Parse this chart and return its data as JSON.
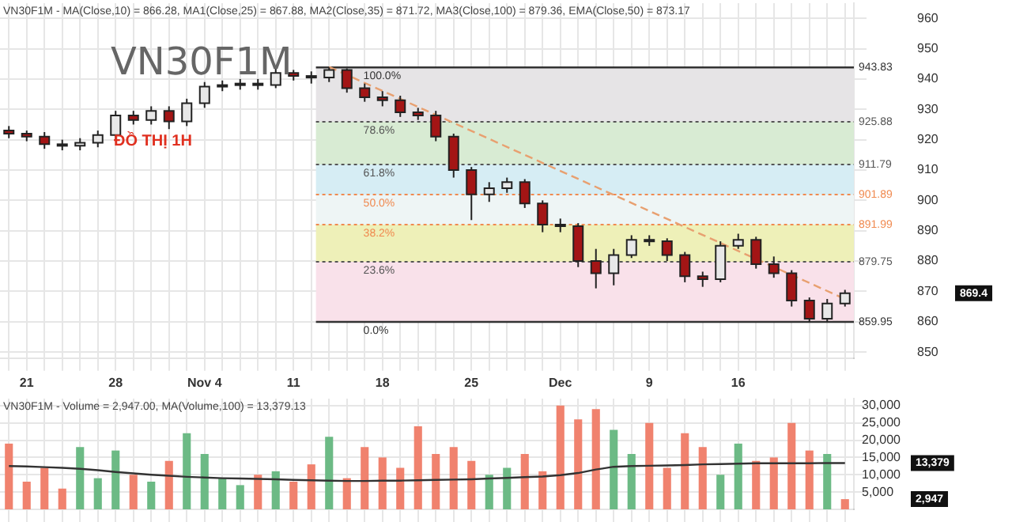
{
  "chart_data": [
    {
      "type": "candlestick",
      "title": "VN30F1M",
      "subtitle": "ĐỒ THỊ 1H",
      "categories": [
        null,
        "21",
        null,
        null,
        null,
        null,
        "28",
        null,
        null,
        null,
        null,
        "Nov 4",
        null,
        null,
        null,
        null,
        "11",
        null,
        null,
        null,
        null,
        "18",
        null,
        null,
        null,
        null,
        "25",
        null,
        null,
        null,
        null,
        "Dec",
        null,
        null,
        null,
        null,
        "9",
        null,
        null,
        null,
        null,
        "16",
        null,
        null,
        null,
        null,
        null,
        null
      ],
      "ohlc": [
        [
          923,
          924.5,
          920.5,
          922
        ],
        [
          922,
          923,
          919.5,
          921
        ],
        [
          921,
          922.5,
          917,
          918.5
        ],
        [
          918.5,
          920,
          916.5,
          918
        ],
        [
          918,
          920.5,
          916.5,
          919
        ],
        [
          919,
          923,
          917.5,
          921.5
        ],
        [
          921.5,
          929.5,
          920,
          928
        ],
        [
          928,
          929.5,
          925,
          926.5
        ],
        [
          926.5,
          931,
          925,
          929.5
        ],
        [
          929.5,
          931,
          923.5,
          926
        ],
        [
          926,
          933.5,
          924.5,
          932
        ],
        [
          932,
          939,
          930.5,
          937.5
        ],
        [
          937.5,
          939.5,
          936,
          938
        ],
        [
          938,
          940,
          936.5,
          938.5
        ],
        [
          938.5,
          940,
          936.5,
          938
        ],
        [
          938,
          943.5,
          937,
          942
        ],
        [
          942,
          943,
          939.5,
          941
        ],
        [
          941,
          942.5,
          938.5,
          940.5
        ],
        [
          940.5,
          943.83,
          939,
          943
        ],
        [
          943,
          943.5,
          935.5,
          937
        ],
        [
          937,
          938.5,
          932.5,
          934
        ],
        [
          934,
          936,
          931,
          933
        ],
        [
          933,
          934.5,
          927.5,
          929
        ],
        [
          929,
          930.5,
          926.5,
          928
        ],
        [
          928,
          929.5,
          919.5,
          921
        ],
        [
          921,
          922,
          907.5,
          910
        ],
        [
          910,
          911,
          893.5,
          902
        ],
        [
          902,
          906,
          899.5,
          904
        ],
        [
          904,
          907.5,
          902.5,
          906
        ],
        [
          906,
          907,
          897.5,
          899
        ],
        [
          899,
          900,
          889.5,
          892
        ],
        [
          892,
          894,
          889.5,
          891.5
        ],
        [
          891.5,
          892.5,
          878,
          880
        ],
        [
          880,
          884,
          871,
          876
        ],
        [
          876,
          884,
          872,
          882
        ],
        [
          882,
          888.5,
          881,
          887
        ],
        [
          887,
          888.5,
          885,
          886.5
        ],
        [
          886.5,
          887.5,
          880,
          882
        ],
        [
          882,
          883,
          873,
          875
        ],
        [
          875,
          876.5,
          871.5,
          874
        ],
        [
          874,
          886.5,
          873,
          885
        ],
        [
          885,
          889,
          884,
          887
        ],
        [
          887,
          888,
          877.5,
          879
        ],
        [
          879,
          881.5,
          874.5,
          876
        ],
        [
          876,
          877,
          865,
          867
        ],
        [
          867,
          868,
          859.95,
          861
        ],
        [
          861,
          867.5,
          860,
          866
        ],
        [
          866,
          870.5,
          865,
          869.4
        ]
      ],
      "colors": [
        "#a31515",
        "#a31515",
        "#a31515",
        "#a31515",
        "#e8e8e8",
        "#e8e8e8",
        "#e8e8e8",
        "#a31515",
        "#e8e8e8",
        "#a31515",
        "#e8e8e8",
        "#e8e8e8",
        "#e8e8e8",
        "#e8e8e8",
        "#a31515",
        "#e8e8e8",
        "#a31515",
        "#a31515",
        "#e8e8e8",
        "#a31515",
        "#a31515",
        "#a31515",
        "#a31515",
        "#a31515",
        "#a31515",
        "#a31515",
        "#a31515",
        "#e8e8e8",
        "#e8e8e8",
        "#a31515",
        "#a31515",
        "#a31515",
        "#a31515",
        "#a31515",
        "#e8e8e8",
        "#e8e8e8",
        "#a31515",
        "#a31515",
        "#a31515",
        "#a31515",
        "#e8e8e8",
        "#e8e8e8",
        "#a31515",
        "#a31515",
        "#a31515",
        "#a31515",
        "#e8e8e8",
        "#e8e8e8"
      ],
      "series": [
        {
          "type": "line",
          "color": "#e8a070",
          "line_style": "dashed",
          "marker": "none",
          "values": [
            null,
            null,
            null,
            null,
            null,
            null,
            null,
            null,
            null,
            null,
            null,
            null,
            null,
            null,
            null,
            null,
            null,
            null,
            944,
            null,
            null,
            null,
            null,
            null,
            null,
            null,
            null,
            null,
            null,
            null,
            null,
            null,
            null,
            null,
            null,
            null,
            null,
            null,
            null,
            null,
            null,
            null,
            null,
            null,
            null,
            null,
            null,
            867.5
          ]
        }
      ],
      "ylim": [
        848,
        965
      ],
      "yticks": [
        850,
        860,
        870,
        880,
        890,
        900,
        910,
        920,
        930,
        940,
        950,
        960
      ],
      "grid": true,
      "legend": false,
      "bands": [
        {
          "axis": "y",
          "from": 925.88,
          "to": 943.83,
          "color": "#e6e4e6"
        },
        {
          "axis": "y",
          "from": 911.79,
          "to": 925.88,
          "color": "#d8ebd3"
        },
        {
          "axis": "y",
          "from": 901.89,
          "to": 911.79,
          "color": "#d6edf4"
        },
        {
          "axis": "y",
          "from": 891.99,
          "to": 901.89,
          "color": "#eef5f5"
        },
        {
          "axis": "y",
          "from": 879.75,
          "to": 891.99,
          "color": "#eef0b8"
        },
        {
          "axis": "y",
          "from": 859.95,
          "to": 879.75,
          "color": "#f9e1ea"
        }
      ],
      "ref_lines": [
        {
          "axis": "y",
          "value": 943.83,
          "label": "943.83",
          "color": "#333333",
          "line_style": "solid"
        },
        {
          "axis": "y",
          "value": 925.88,
          "label": "925.88",
          "color": "#555555",
          "line_style": "dotted"
        },
        {
          "axis": "y",
          "value": 911.79,
          "label": "911.79",
          "color": "#555555",
          "line_style": "dotted"
        },
        {
          "axis": "y",
          "value": 901.89,
          "label": "901.89",
          "color": "#f08a50",
          "line_style": "dotted"
        },
        {
          "axis": "y",
          "value": 891.99,
          "label": "891.99",
          "color": "#f08a50",
          "line_style": "dotted"
        },
        {
          "axis": "y",
          "value": 879.75,
          "label": "879.75",
          "color": "#555555",
          "line_style": "dotted"
        },
        {
          "axis": "y",
          "value": 859.95,
          "label": "859.95",
          "color": "#333333",
          "line_style": "solid"
        }
      ],
      "annotations": [
        "VN30F1M - MA(Close,10) = 866.28, MA1(Close,25) = 867.88, MA2(Close,35) = 871.72, MA3(Close,100) = 879.36, EMA(Close,50) = 873.17",
        {
          "text": "100.0%",
          "y": 943.83
        },
        {
          "text": "78.6%",
          "y": 925.88
        },
        {
          "text": "61.8%",
          "y": 911.79
        },
        {
          "text": "50.0%",
          "y": 901.89
        },
        {
          "text": "38.2%",
          "y": 891.99
        },
        {
          "text": "23.6%",
          "y": 879.75
        },
        {
          "text": "0.0%",
          "y": 859.95
        },
        "869.4"
      ]
    },
    {
      "type": "bar",
      "categories": [
        null,
        null,
        null,
        null,
        null,
        null,
        null,
        null,
        null,
        null,
        null,
        null,
        null,
        null,
        null,
        null,
        null,
        null,
        null,
        null,
        null,
        null,
        null,
        null,
        null,
        null,
        null,
        null,
        null,
        null,
        null,
        null,
        null,
        null,
        null,
        null,
        null,
        null,
        null,
        null,
        null,
        null,
        null,
        null,
        null,
        null,
        null,
        null
      ],
      "series": [
        {
          "values": [
            19000,
            8000,
            12000,
            6000,
            18000,
            9000,
            17000,
            10000,
            8000,
            14000,
            22000,
            16000,
            9000,
            7000,
            10000,
            11000,
            8000,
            13000,
            21000,
            9000,
            18000,
            15000,
            12000,
            24000,
            16000,
            18000,
            14000,
            10000,
            12000,
            16000,
            11000,
            30000,
            26000,
            29000,
            23000,
            16000,
            25000,
            12000,
            22000,
            18000,
            10000,
            19000,
            14000,
            15000,
            25000,
            17000,
            16000,
            2947
          ],
          "colors": [
            "#f0826e",
            "#f0826e",
            "#f0826e",
            "#f0826e",
            "#6cba85",
            "#6cba85",
            "#6cba85",
            "#f0826e",
            "#6cba85",
            "#f0826e",
            "#6cba85",
            "#6cba85",
            "#6cba85",
            "#6cba85",
            "#f0826e",
            "#6cba85",
            "#f0826e",
            "#f0826e",
            "#6cba85",
            "#f0826e",
            "#f0826e",
            "#f0826e",
            "#f0826e",
            "#f0826e",
            "#f0826e",
            "#f0826e",
            "#f0826e",
            "#6cba85",
            "#6cba85",
            "#f0826e",
            "#f0826e",
            "#f0826e",
            "#f0826e",
            "#f0826e",
            "#6cba85",
            "#6cba85",
            "#f0826e",
            "#f0826e",
            "#f0826e",
            "#f0826e",
            "#6cba85",
            "#6cba85",
            "#f0826e",
            "#f0826e",
            "#f0826e",
            "#f0826e",
            "#6cba85",
            "#f0826e"
          ]
        },
        {
          "type": "line",
          "color": "#333333",
          "values": [
            12500,
            12400,
            12200,
            12000,
            11700,
            11300,
            10800,
            10400,
            10000,
            9700,
            9400,
            9200,
            9000,
            8900,
            8800,
            8700,
            8500,
            8400,
            8300,
            8200,
            8200,
            8300,
            8300,
            8400,
            8500,
            8600,
            8700,
            8900,
            9100,
            9300,
            9500,
            9900,
            10500,
            11500,
            12300,
            12500,
            12600,
            12700,
            12800,
            13000,
            13100,
            13200,
            13300,
            13300,
            13300,
            13300,
            13400,
            13379
          ]
        }
      ],
      "ylim": [
        0,
        32000
      ],
      "yticks": [
        {
          "value": 5000,
          "label": "5,000"
        },
        {
          "value": 10000,
          "label": "10,000"
        },
        {
          "value": 15000,
          "label": "15,000"
        },
        {
          "value": 20000,
          "label": "20,000"
        },
        {
          "value": 25000,
          "label": "25,000"
        },
        {
          "value": 30000,
          "label": "30,000"
        }
      ],
      "grid": true,
      "tick_labels": "y",
      "marker": "none",
      "annotations": [
        "VN30F1M - Volume = 2,947.00, MA(Volume,100) = 13,379.13",
        "13,379",
        "2,947"
      ]
    }
  ]
}
